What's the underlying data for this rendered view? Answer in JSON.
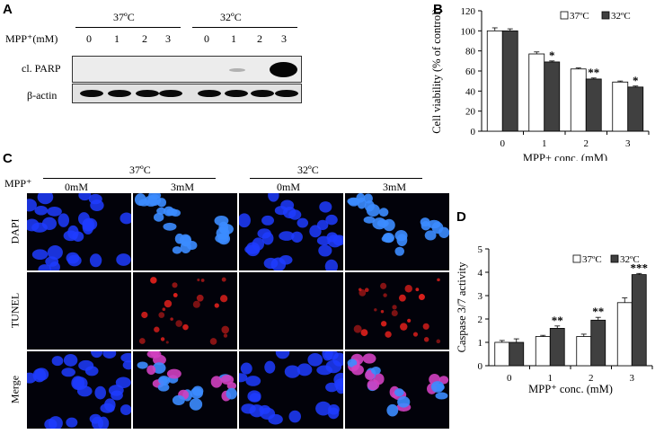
{
  "panels": {
    "a": {
      "letter": "A",
      "temp_left": "37ºC",
      "temp_right": "32ºC",
      "mpp_label": "MPP⁺(mM)",
      "lanes": [
        "0",
        "1",
        "2",
        "3",
        "0",
        "1",
        "2",
        "3"
      ],
      "row_parp": "cl. PARP",
      "row_actin": "β-actin"
    },
    "b": {
      "letter": "B"
    },
    "c": {
      "letter": "C",
      "mpp_label": "MPP⁺",
      "temp_left": "37ºC",
      "temp_right": "32ºC",
      "col_labels": [
        "0mM",
        "3mM",
        "0mM",
        "3mM"
      ],
      "row_labels": [
        "DAPI",
        "TUNEL",
        "Merge"
      ]
    },
    "d": {
      "letter": "D"
    }
  },
  "colors": {
    "white_bar": "#ffffff",
    "dark_bar": "#404040",
    "dapi": "#1f3cff",
    "tunel": "#e0201c"
  },
  "chart_data": [
    {
      "id": "B",
      "type": "bar",
      "categories": [
        "0",
        "1",
        "2",
        "3"
      ],
      "series": [
        {
          "name": "37ºC",
          "values": [
            100,
            77,
            62,
            49
          ],
          "errors": [
            3,
            2,
            1,
            1
          ]
        },
        {
          "name": "32ºC",
          "values": [
            100,
            69,
            52,
            44
          ],
          "errors": [
            2,
            1,
            1,
            1
          ]
        }
      ],
      "significance": [
        "",
        "*",
        "**",
        "*"
      ],
      "xlabel": "MPP+ conc. (mM)",
      "ylabel": "Cell viability (% of control)",
      "ylim": [
        0,
        120
      ],
      "yticks": [
        "0",
        "20",
        "40",
        "60",
        "80",
        "100",
        "120"
      ],
      "legend": "top-right",
      "grid": false
    },
    {
      "id": "D",
      "type": "bar",
      "categories": [
        "0",
        "1",
        "2",
        "3"
      ],
      "series": [
        {
          "name": "37ºC",
          "values": [
            1.0,
            1.25,
            1.25,
            2.7
          ],
          "errors": [
            0.08,
            0.05,
            0.1,
            0.2
          ]
        },
        {
          "name": "32ºC",
          "values": [
            1.0,
            1.6,
            1.95,
            3.9
          ],
          "errors": [
            0.15,
            0.1,
            0.12,
            0.05
          ]
        }
      ],
      "significance": [
        "",
        "**",
        "**",
        "***"
      ],
      "xlabel": "MPP⁺ conc. (mM)",
      "ylabel": "Caspase 3/7 activity",
      "ylim": [
        0,
        5
      ],
      "yticks": [
        "0",
        "1",
        "2",
        "3",
        "4",
        "5"
      ],
      "legend": "top-right",
      "grid": false
    }
  ]
}
